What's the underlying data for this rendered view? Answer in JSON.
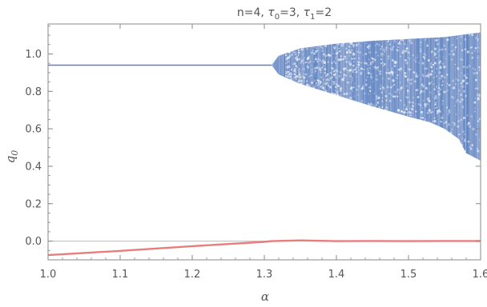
{
  "chart_data": {
    "type": "scatter",
    "title_parts": {
      "prefix": "n=4, ",
      "sym0": "τ",
      "sub0": "0",
      "mid0": "=3, ",
      "sym1": "τ",
      "sub1": "1",
      "mid1": "=2"
    },
    "xlabel": "α",
    "ylabel_parts": {
      "base": "q",
      "sub": "0"
    },
    "xlim": [
      1.0,
      1.6
    ],
    "ylim": [
      -0.1,
      1.16
    ],
    "x_ticks": [
      1.0,
      1.1,
      1.2,
      1.3,
      1.4,
      1.5,
      1.6
    ],
    "x_tick_labels": [
      "1.0",
      "1.1",
      "1.2",
      "1.3",
      "1.4",
      "1.5",
      "1.6"
    ],
    "y_ticks": [
      0.0,
      0.2,
      0.4,
      0.6,
      0.8,
      1.0
    ],
    "y_tick_labels": [
      "0.0",
      "0.2",
      "0.4",
      "0.6",
      "0.8",
      "1.0"
    ],
    "zero_line": 0.0,
    "grid": false,
    "colors": {
      "q0": "#5b7fbf",
      "exponent": "#e87d7d",
      "axes": "#888888",
      "zero_line": "#bbbbbb"
    },
    "series": [
      {
        "role": "q0 fixed point then oscillation envelope (upper)",
        "x": [
          1.0,
          1.31,
          1.32,
          1.35,
          1.4,
          1.45,
          1.5,
          1.55,
          1.58,
          1.6
        ],
        "y": [
          0.94,
          0.94,
          0.99,
          1.03,
          1.055,
          1.07,
          1.08,
          1.09,
          1.105,
          1.115
        ]
      },
      {
        "role": "q0 oscillation envelope (lower)",
        "x": [
          1.31,
          1.32,
          1.35,
          1.4,
          1.45,
          1.5,
          1.53,
          1.55,
          1.57,
          1.58,
          1.6
        ],
        "y": [
          0.94,
          0.89,
          0.84,
          0.78,
          0.72,
          0.665,
          0.635,
          0.6,
          0.545,
          0.47,
          0.43
        ]
      },
      {
        "role": "largest exponent",
        "x": [
          1.0,
          1.1,
          1.2,
          1.3,
          1.31,
          1.35,
          1.4,
          1.45,
          1.5,
          1.55,
          1.6
        ],
        "y": [
          -0.075,
          -0.052,
          -0.027,
          -0.004,
          0.0,
          0.004,
          0.0,
          0.001,
          0.0,
          0.001,
          0.001
        ]
      }
    ]
  }
}
